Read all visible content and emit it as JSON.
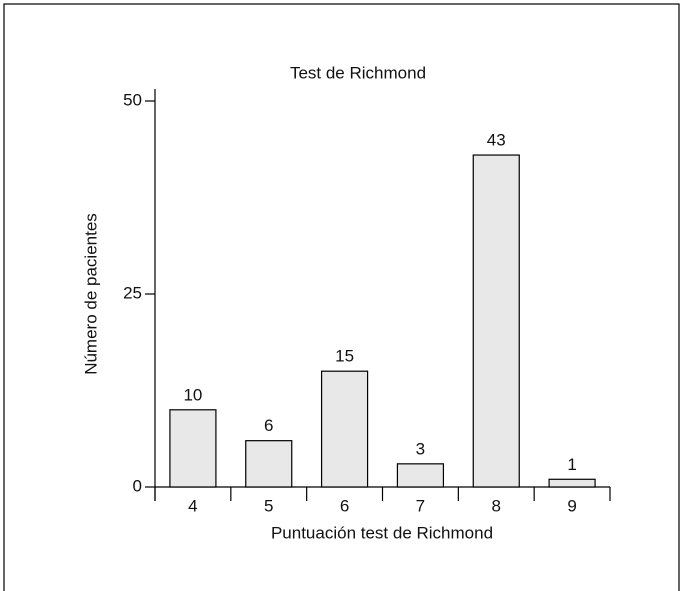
{
  "chart_data": {
    "type": "bar",
    "title": "Test de Richmond",
    "x_label": "Puntuación test de Richmond",
    "y_label": "Número de pacientes",
    "categories": [
      "4",
      "5",
      "6",
      "7",
      "8",
      "9"
    ],
    "values": [
      10,
      6,
      15,
      3,
      43,
      1
    ],
    "color": "#e8e8e8",
    "ylim": [
      0,
      50
    ],
    "yticks": [
      0,
      25,
      50
    ]
  }
}
